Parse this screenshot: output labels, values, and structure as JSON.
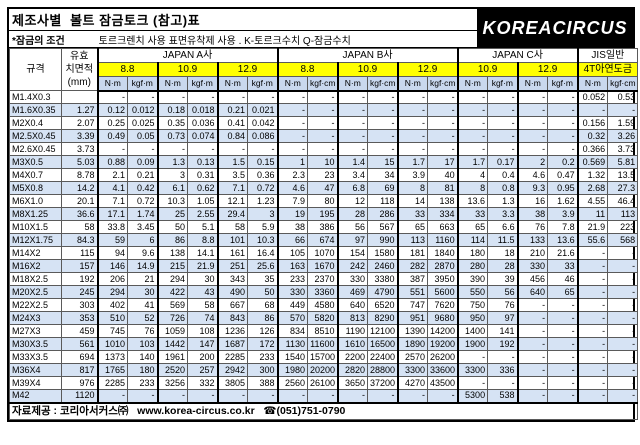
{
  "title": "제조사별  볼트 잠금토크 (참고)표",
  "logo_text": "KOREACIRCUS",
  "subtitle": {
    "label": "*잠금의 조건",
    "text": "토르크렌치 사용 표면유착제 사용 . K-토르크수치  Q-잠금수치"
  },
  "footer": "자료제공 : 코리아서커스㈜   www.korea-circus.co.kr   ☎(051)751-0790",
  "colors": {
    "yellow": "#ffff00",
    "unit_header_blue": "#c9d8ee",
    "alt_row_blue": "#d6e3f4",
    "logo_bg": "#000000",
    "grid": "#5a5a5a"
  },
  "table": {
    "spec_header": "규격",
    "area_header_lines": [
      "유효",
      "치면적",
      "(mm)"
    ],
    "groups": [
      {
        "name": "JAPAN  A사",
        "grades": [
          "8.8",
          "10.9",
          "12.9"
        ],
        "units": [
          "N·m",
          "kgf·m"
        ]
      },
      {
        "name": "JAPAN  B사",
        "grades": [
          "8.8",
          "10.9",
          "12.9"
        ],
        "units": [
          "N·m",
          "kgf·cm"
        ]
      },
      {
        "name": "JAPAN  C사",
        "grades": [
          "10.9",
          "12.9"
        ],
        "units": [
          "N·m",
          "kgf·m"
        ]
      },
      {
        "name": "JIS일반",
        "grades": [
          "4T아연도금"
        ],
        "units": [
          "N·m",
          "kgf·cm"
        ]
      }
    ],
    "rows": [
      {
        "spec": "M1.4X0.3",
        "area": "",
        "values": [
          "-",
          "-",
          "-",
          "-",
          "-",
          "-",
          "-",
          "-",
          "-",
          "-",
          "-",
          "-",
          "-",
          "-",
          "-",
          "-",
          "0.052",
          "0.53"
        ]
      },
      {
        "spec": "M1.6X0.35",
        "area": "1.27",
        "values": [
          "0.12",
          "0.012",
          "0.18",
          "0.018",
          "0.21",
          "0.021",
          "-",
          "-",
          "-",
          "-",
          "-",
          "-",
          "-",
          "-",
          "-",
          "-",
          "-",
          "-"
        ]
      },
      {
        "spec": "M2X0.4",
        "area": "2.07",
        "values": [
          "0.25",
          "0.025",
          "0.35",
          "0.036",
          "0.41",
          "0.042",
          "-",
          "-",
          "-",
          "-",
          "-",
          "-",
          "-",
          "-",
          "-",
          "-",
          "0.156",
          "1.59"
        ]
      },
      {
        "spec": "M2.5X0.45",
        "area": "3.39",
        "values": [
          "0.49",
          "0.05",
          "0.73",
          "0.074",
          "0.84",
          "0.086",
          "-",
          "-",
          "-",
          "-",
          "-",
          "-",
          "-",
          "-",
          "-",
          "-",
          "0.32",
          "3.26"
        ]
      },
      {
        "spec": "M2.6X0.45",
        "area": "3.73",
        "values": [
          "-",
          "-",
          "-",
          "-",
          "-",
          "-",
          "-",
          "-",
          "-",
          "-",
          "-",
          "-",
          "-",
          "-",
          "-",
          "-",
          "0.366",
          "3.73"
        ]
      },
      {
        "spec": "M3X0.5",
        "area": "5.03",
        "values": [
          "0.88",
          "0.09",
          "1.3",
          "0.13",
          "1.5",
          "0.15",
          "1",
          "10",
          "1.4",
          "15",
          "1.7",
          "17",
          "1.7",
          "0.17",
          "2",
          "0.2",
          "0.569",
          "5.81"
        ]
      },
      {
        "spec": "M4X0.7",
        "area": "8.78",
        "values": [
          "2.1",
          "0.21",
          "3",
          "0.31",
          "3.5",
          "0.36",
          "2.3",
          "23",
          "3.4",
          "34",
          "3.9",
          "40",
          "4",
          "0.4",
          "4.6",
          "0.47",
          "1.32",
          "13.5"
        ]
      },
      {
        "spec": "M5X0.8",
        "area": "14.2",
        "values": [
          "4.1",
          "0.42",
          "6.1",
          "0.62",
          "7.1",
          "0.72",
          "4.6",
          "47",
          "6.8",
          "69",
          "8",
          "81",
          "8",
          "0.8",
          "9.3",
          "0.95",
          "2.68",
          "27.3"
        ]
      },
      {
        "spec": "M6X1.0",
        "area": "20.1",
        "values": [
          "7.1",
          "0.72",
          "10.3",
          "1.05",
          "12.1",
          "1.23",
          "7.9",
          "80",
          "12",
          "118",
          "14",
          "138",
          "13.6",
          "1.3",
          "16",
          "1.62",
          "4.55",
          "46.4"
        ]
      },
      {
        "spec": "M8X1.25",
        "area": "36.6",
        "values": [
          "17.1",
          "1.74",
          "25",
          "2.55",
          "29.4",
          "3",
          "19",
          "195",
          "28",
          "286",
          "33",
          "334",
          "33",
          "3.3",
          "38",
          "3.9",
          "11",
          "113"
        ]
      },
      {
        "spec": "M10X1.5",
        "area": "58",
        "values": [
          "33.8",
          "3.45",
          "50",
          "5.1",
          "58",
          "5.9",
          "38",
          "386",
          "56",
          "567",
          "65",
          "663",
          "65",
          "6.6",
          "76",
          "7.8",
          "21.9",
          "223"
        ]
      },
      {
        "spec": "M12X1.75",
        "area": "84.3",
        "values": [
          "59",
          "6",
          "86",
          "8.8",
          "101",
          "10.3",
          "66",
          "674",
          "97",
          "990",
          "113",
          "1160",
          "114",
          "11.5",
          "133",
          "13.6",
          "55.6",
          "568"
        ]
      },
      {
        "spec": "M14X2",
        "area": "115",
        "values": [
          "94",
          "9.6",
          "138",
          "14.1",
          "161",
          "16.4",
          "105",
          "1070",
          "154",
          "1580",
          "181",
          "1840",
          "180",
          "18",
          "210",
          "21.6",
          "-",
          "-"
        ]
      },
      {
        "spec": "M16X2",
        "area": "157",
        "values": [
          "146",
          "14.9",
          "215",
          "21.9",
          "251",
          "25.6",
          "163",
          "1670",
          "242",
          "2460",
          "282",
          "2870",
          "280",
          "28",
          "330",
          "33",
          "-",
          "-"
        ]
      },
      {
        "spec": "M18X2.5",
        "area": "192",
        "values": [
          "206",
          "21",
          "294",
          "30",
          "343",
          "35",
          "233",
          "2370",
          "330",
          "3380",
          "387",
          "3950",
          "390",
          "39",
          "456",
          "46",
          "-",
          "-"
        ]
      },
      {
        "spec": "M20X2.5",
        "area": "245",
        "values": [
          "294",
          "30",
          "422",
          "43",
          "490",
          "50",
          "330",
          "3360",
          "469",
          "4790",
          "551",
          "5600",
          "550",
          "56",
          "640",
          "65",
          "-",
          "-"
        ]
      },
      {
        "spec": "M22X2.5",
        "area": "303",
        "values": [
          "402",
          "41",
          "569",
          "58",
          "667",
          "68",
          "449",
          "4580",
          "640",
          "6520",
          "747",
          "7620",
          "750",
          "76",
          "-",
          "-",
          "-",
          "-"
        ]
      },
      {
        "spec": "M24X3",
        "area": "353",
        "values": [
          "510",
          "52",
          "726",
          "74",
          "843",
          "86",
          "570",
          "5820",
          "813",
          "8290",
          "951",
          "9680",
          "950",
          "97",
          "-",
          "-",
          "-",
          "-"
        ]
      },
      {
        "spec": "M27X3",
        "area": "459",
        "values": [
          "745",
          "76",
          "1059",
          "108",
          "1236",
          "126",
          "834",
          "8510",
          "1190",
          "12100",
          "1390",
          "14200",
          "1400",
          "141",
          "-",
          "-",
          "-",
          "-"
        ]
      },
      {
        "spec": "M30X3.5",
        "area": "561",
        "values": [
          "1010",
          "103",
          "1442",
          "147",
          "1687",
          "172",
          "1130",
          "11600",
          "1610",
          "16500",
          "1890",
          "19200",
          "1900",
          "192",
          "-",
          "-",
          "-",
          "-"
        ]
      },
      {
        "spec": "M33X3.5",
        "area": "694",
        "values": [
          "1373",
          "140",
          "1961",
          "200",
          "2285",
          "233",
          "1540",
          "15700",
          "2200",
          "22400",
          "2570",
          "26200",
          "-",
          "-",
          "-",
          "-",
          "-",
          "-"
        ]
      },
      {
        "spec": "M36X4",
        "area": "817",
        "values": [
          "1765",
          "180",
          "2520",
          "257",
          "2942",
          "300",
          "1980",
          "20200",
          "2820",
          "28800",
          "3300",
          "33600",
          "3300",
          "336",
          "-",
          "-",
          "-",
          "-"
        ]
      },
      {
        "spec": "M39X4",
        "area": "976",
        "values": [
          "2285",
          "233",
          "3256",
          "332",
          "3805",
          "388",
          "2560",
          "26100",
          "3650",
          "37200",
          "4270",
          "43500",
          "-",
          "-",
          "-",
          "-",
          "-",
          "-"
        ]
      },
      {
        "spec": "M42",
        "area": "1120",
        "values": [
          "-",
          "-",
          "-",
          "-",
          "-",
          "-",
          "-",
          "-",
          "-",
          "-",
          "-",
          "-",
          "5300",
          "538",
          "-",
          "-",
          "-",
          "-"
        ]
      }
    ]
  }
}
